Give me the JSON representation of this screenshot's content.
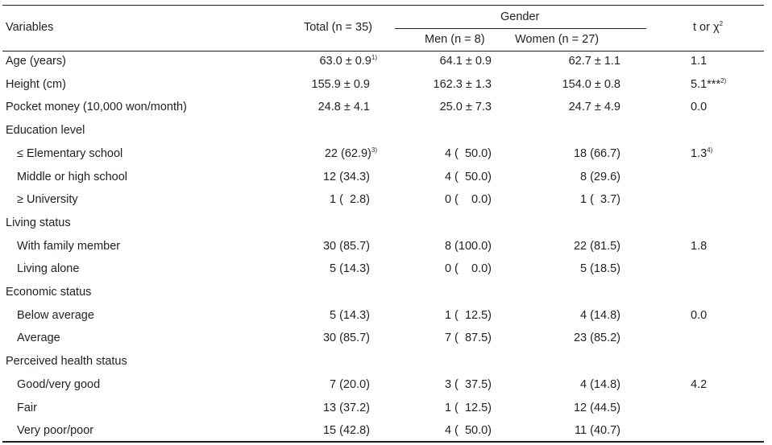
{
  "header": {
    "variables": "Variables",
    "total": "Total (n = 35)",
    "gender": "Gender",
    "men": "Men (n = 8)",
    "women": "Women (n = 27)",
    "stat_prefix": "t or χ",
    "stat_sup": "2"
  },
  "rows": [
    {
      "label": "Age (years)",
      "indent": false,
      "total": "63.0 ± 0.9",
      "total_sup": "1)",
      "men": "64.1 ± 0.9",
      "women": "62.7 ± 1.1",
      "stat": "1.1",
      "stat_sup": ""
    },
    {
      "label": "Height (cm)",
      "indent": false,
      "total": "155.9 ± 0.9",
      "total_sup": "",
      "men": "162.3 ± 1.3",
      "women": "154.0 ± 0.8",
      "stat": "5.1***",
      "stat_sup": "2)"
    },
    {
      "label": "Pocket money (10,000 won/month)",
      "indent": false,
      "total": "24.8 ± 4.1",
      "total_sup": "",
      "men": "25.0 ± 7.3",
      "women": "24.7 ± 4.9",
      "stat": "0.0",
      "stat_sup": ""
    },
    {
      "label": "Education level",
      "indent": false,
      "total": "",
      "total_sup": "",
      "men": "",
      "women": "",
      "stat": "",
      "stat_sup": ""
    },
    {
      "label": "≤ Elementary school",
      "indent": true,
      "total": "22 (62.9)",
      "total_sup": "3)",
      "men": "4 (  50.0)",
      "women": "18 (66.7)",
      "stat": "1.3",
      "stat_sup": "4)"
    },
    {
      "label": "Middle or high school",
      "indent": true,
      "total": "12 (34.3)",
      "total_sup": "",
      "men": "4 (  50.0)",
      "women": "8 (29.6)",
      "stat": "",
      "stat_sup": ""
    },
    {
      "label": "≥ University",
      "indent": true,
      "total": "1 (  2.8)",
      "total_sup": "",
      "men": "0 (    0.0)",
      "women": "1 (  3.7)",
      "stat": "",
      "stat_sup": ""
    },
    {
      "label": "Living status",
      "indent": false,
      "total": "",
      "total_sup": "",
      "men": "",
      "women": "",
      "stat": "",
      "stat_sup": ""
    },
    {
      "label": "With family member",
      "indent": true,
      "total": "30 (85.7)",
      "total_sup": "",
      "men": "8 (100.0)",
      "women": "22 (81.5)",
      "stat": "1.8",
      "stat_sup": ""
    },
    {
      "label": "Living alone",
      "indent": true,
      "total": "5 (14.3)",
      "total_sup": "",
      "men": "0 (    0.0)",
      "women": "5 (18.5)",
      "stat": "",
      "stat_sup": ""
    },
    {
      "label": "Economic status",
      "indent": false,
      "total": "",
      "total_sup": "",
      "men": "",
      "women": "",
      "stat": "",
      "stat_sup": ""
    },
    {
      "label": "Below average",
      "indent": true,
      "total": "5 (14.3)",
      "total_sup": "",
      "men": "1 (  12.5)",
      "women": "4 (14.8)",
      "stat": "0.0",
      "stat_sup": ""
    },
    {
      "label": "Average",
      "indent": true,
      "total": "30 (85.7)",
      "total_sup": "",
      "men": "7 (  87.5)",
      "women": "23 (85.2)",
      "stat": "",
      "stat_sup": ""
    },
    {
      "label": "Perceived health status",
      "indent": false,
      "total": "",
      "total_sup": "",
      "men": "",
      "women": "",
      "stat": "",
      "stat_sup": ""
    },
    {
      "label": "Good/very good",
      "indent": true,
      "total": "7 (20.0)",
      "total_sup": "",
      "men": "3 (  37.5)",
      "women": "4 (14.8)",
      "stat": "4.2",
      "stat_sup": ""
    },
    {
      "label": "Fair",
      "indent": true,
      "total": "13 (37.2)",
      "total_sup": "",
      "men": "1 (  12.5)",
      "women": "12 (44.5)",
      "stat": "",
      "stat_sup": ""
    },
    {
      "label": "Very poor/poor",
      "indent": true,
      "total": "15 (42.8)",
      "total_sup": "",
      "men": "4 (  50.0)",
      "women": "11 (40.7)",
      "stat": "",
      "stat_sup": ""
    }
  ]
}
